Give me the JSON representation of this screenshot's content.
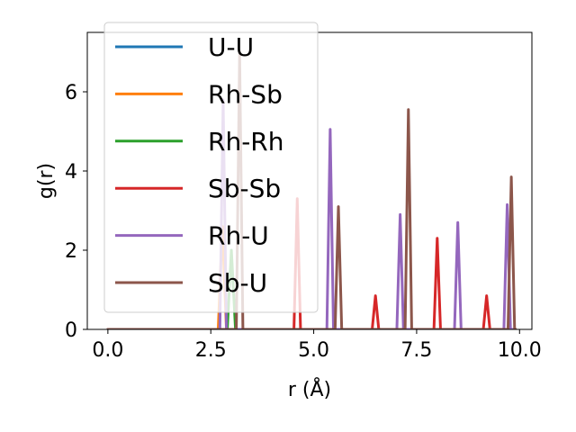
{
  "chart_data": {
    "type": "line",
    "title": "",
    "xlabel": "r (Å)",
    "ylabel": "g(r)",
    "xlim": [
      -0.5,
      10.3
    ],
    "ylim": [
      0,
      7.5
    ],
    "xticks": [
      0.0,
      2.5,
      5.0,
      7.5,
      10.0
    ],
    "xtick_labels": [
      "0.0",
      "2.5",
      "5.0",
      "7.5",
      "10.0"
    ],
    "yticks": [
      0,
      2,
      4,
      6
    ],
    "ytick_labels": [
      "0",
      "2",
      "4",
      "6"
    ],
    "grid": false,
    "legend_position": "top-left",
    "series": [
      {
        "name": "U-U",
        "color": "#1f77b4",
        "x": [
          0,
          9.9
        ],
        "y": [
          0,
          0
        ]
      },
      {
        "name": "Rh-Sb",
        "color": "#ff7f0e",
        "x": [
          0,
          2.68,
          2.78,
          2.88,
          9.9
        ],
        "y": [
          0,
          0,
          2.6,
          0,
          0
        ]
      },
      {
        "name": "Rh-Rh",
        "color": "#2ca02c",
        "x": [
          0,
          2.9,
          3.0,
          3.1,
          9.9
        ],
        "y": [
          0,
          0,
          2.0,
          0,
          0
        ]
      },
      {
        "name": "Sb-Sb",
        "color": "#d62728",
        "x": [
          0,
          4.52,
          4.6,
          4.68,
          6.42,
          6.5,
          6.58,
          7.92,
          8.0,
          8.08,
          9.12,
          9.2,
          9.28,
          9.9
        ],
        "y": [
          0,
          0,
          3.3,
          0,
          0,
          0.85,
          0,
          0,
          2.3,
          0,
          0,
          0.85,
          0,
          0
        ]
      },
      {
        "name": "Rh-U",
        "color": "#9467bd",
        "x": [
          0,
          2.72,
          2.8,
          2.88,
          5.32,
          5.4,
          5.48,
          7.02,
          7.1,
          7.18,
          8.42,
          8.5,
          8.58,
          9.62,
          9.7,
          9.78,
          9.9
        ],
        "y": [
          0,
          0,
          5.8,
          0,
          0,
          5.05,
          0,
          0,
          2.9,
          0,
          0,
          2.7,
          0,
          0,
          3.15,
          0,
          0
        ]
      },
      {
        "name": "Sb-U",
        "color": "#8c564b",
        "x": [
          0,
          3.12,
          3.2,
          3.28,
          5.52,
          5.6,
          5.68,
          7.22,
          7.3,
          7.38,
          9.72,
          9.8,
          9.88,
          9.9
        ],
        "y": [
          0,
          0,
          7.0,
          0,
          0,
          3.1,
          0,
          0,
          5.55,
          0,
          0,
          3.85,
          0,
          0
        ]
      }
    ]
  }
}
